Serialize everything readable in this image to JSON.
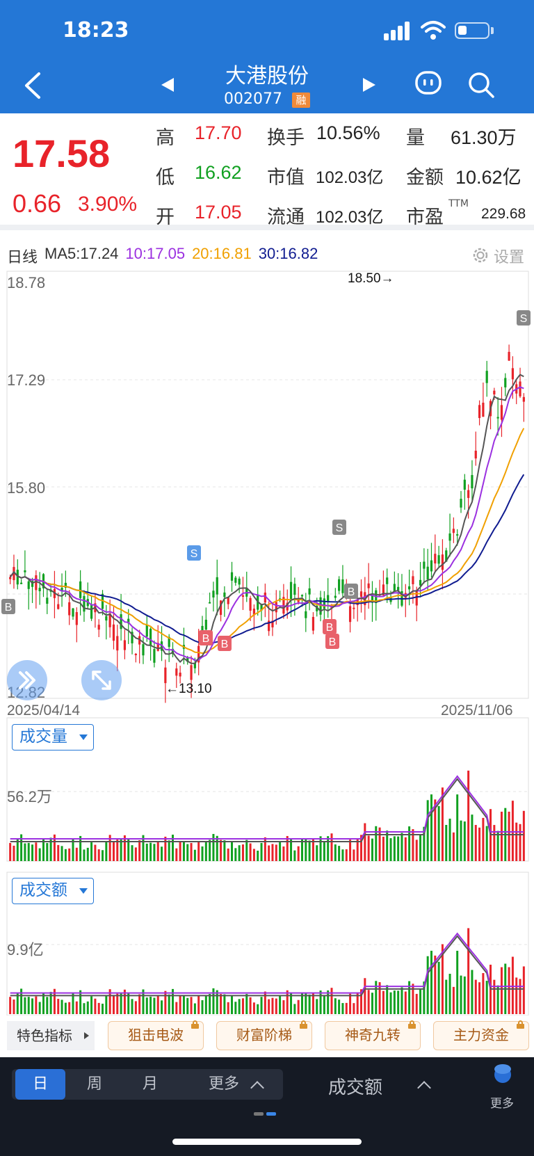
{
  "status_bar": {
    "time": "18:23"
  },
  "header": {
    "stock_name": "大港股份",
    "stock_code": "002077",
    "badge": "融",
    "icons": [
      "back-icon",
      "prev-stock-icon",
      "next-stock-icon",
      "message-icon",
      "search-icon"
    ]
  },
  "quote": {
    "price": "17.58",
    "change": "0.66",
    "change_pct": "3.90%",
    "rows": [
      [
        {
          "label": "高",
          "value": "17.70"
        },
        {
          "label": "换手",
          "value": "10.56%"
        },
        {
          "label": "量",
          "value": "61.30万"
        }
      ],
      [
        {
          "label": "低",
          "value": "16.62"
        },
        {
          "label": "市值",
          "value": "102.03亿"
        },
        {
          "label": "金额",
          "value": "10.62亿"
        }
      ],
      [
        {
          "label": "开",
          "value": "17.05"
        },
        {
          "label": "流通",
          "value": "102.03亿"
        },
        {
          "label": "市盈",
          "value": "229.68",
          "sup": "TTM"
        }
      ]
    ],
    "colors": {
      "up": "#e8232a",
      "down": "#10a020"
    }
  },
  "chart": {
    "period_label": "日线",
    "ma": [
      {
        "label": "MA5:17.24",
        "color": "#333333"
      },
      {
        "label": "10:17.05",
        "color": "#9b30e0"
      },
      {
        "label": "20:16.81",
        "color": "#f0a000"
      },
      {
        "label": "30:16.82",
        "color": "#101c90"
      }
    ],
    "settings_label": "设置",
    "y_ticks": [
      "18.78",
      "17.29",
      "15.80",
      "12.82"
    ],
    "high_annotation": "18.50→",
    "low_annotation": "←13.10",
    "start_date": "2025/04/14",
    "end_date": "2025/11/06",
    "volume_selector": "成交量",
    "volume_tick": "56.2万",
    "amount_selector": "成交额",
    "amount_tick": "9.9亿",
    "signals": [
      "B",
      "S",
      "B",
      "B",
      "B",
      "S",
      "B",
      "B",
      "S"
    ]
  },
  "features": {
    "main_label": "特色指标",
    "buttons": [
      "狙击电波",
      "财富阶梯",
      "神奇九转",
      "主力资金"
    ]
  },
  "bottom": {
    "periods": [
      "日",
      "周",
      "月",
      "更多"
    ],
    "active_period": "日",
    "metric": "成交额",
    "more_label": "更多"
  }
}
